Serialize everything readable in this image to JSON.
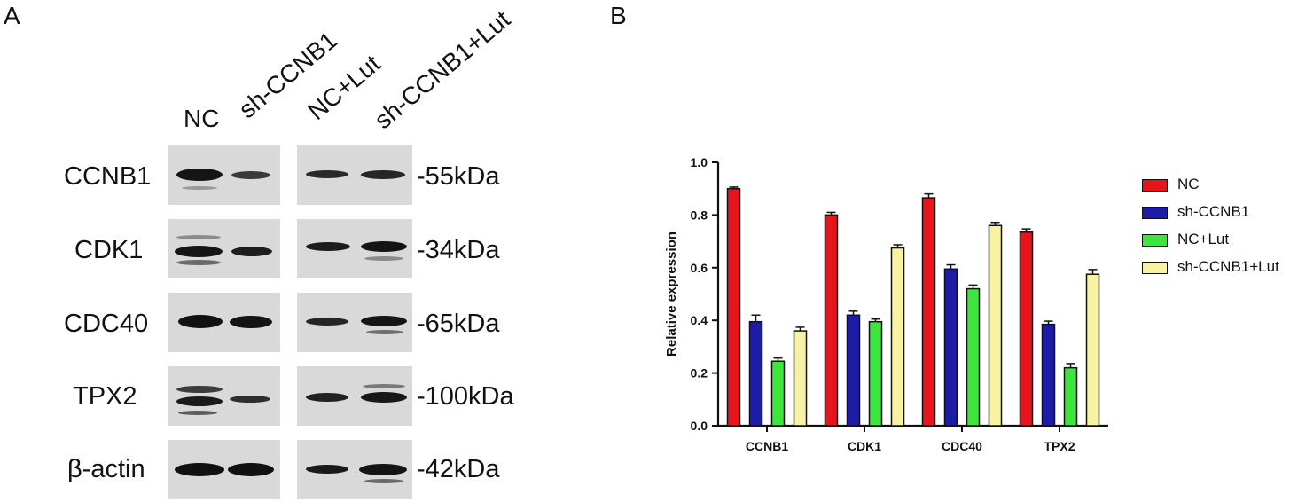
{
  "panels": {
    "a": "A",
    "b": "B"
  },
  "western_blot": {
    "lanes": [
      "NC",
      "sh-CCNB1",
      "NC+Lut",
      "sh-CCNB1+Lut"
    ],
    "proteins": [
      "CCNB1",
      "CDK1",
      "CDC40",
      "TPX2",
      "β-actin"
    ],
    "markers": [
      "-55kDa",
      "-34kDa",
      "-65kDa",
      "-100kDa",
      "-42kDa"
    ]
  },
  "colors": {
    "NC": "#e8141b",
    "sh-CCNB1": "#1c1ca6",
    "NC+Lut": "#3de63d",
    "sh-CCNB1+Lut": "#f7f3a3"
  },
  "chart_data": {
    "type": "bar",
    "categories": [
      "CCNB1",
      "CDK1",
      "CDC40",
      "TPX2"
    ],
    "series": [
      {
        "name": "NC",
        "values": [
          0.9,
          0.8,
          0.865,
          0.735
        ],
        "errors": [
          0.006,
          0.01,
          0.015,
          0.012
        ]
      },
      {
        "name": "sh-CCNB1",
        "values": [
          0.395,
          0.42,
          0.595,
          0.385
        ],
        "errors": [
          0.025,
          0.015,
          0.016,
          0.012
        ]
      },
      {
        "name": "NC+Lut",
        "values": [
          0.245,
          0.395,
          0.52,
          0.22
        ],
        "errors": [
          0.012,
          0.01,
          0.014,
          0.016
        ]
      },
      {
        "name": "sh-CCNB1+Lut",
        "values": [
          0.36,
          0.675,
          0.76,
          0.575
        ],
        "errors": [
          0.014,
          0.012,
          0.012,
          0.018
        ]
      }
    ],
    "ylabel": "Relative expression",
    "xlabel": "",
    "ylim": [
      0.0,
      1.0
    ],
    "yticks": [
      "0.0",
      "0.2",
      "0.4",
      "0.6",
      "0.8",
      "1.0"
    ],
    "legend_position": "right"
  }
}
